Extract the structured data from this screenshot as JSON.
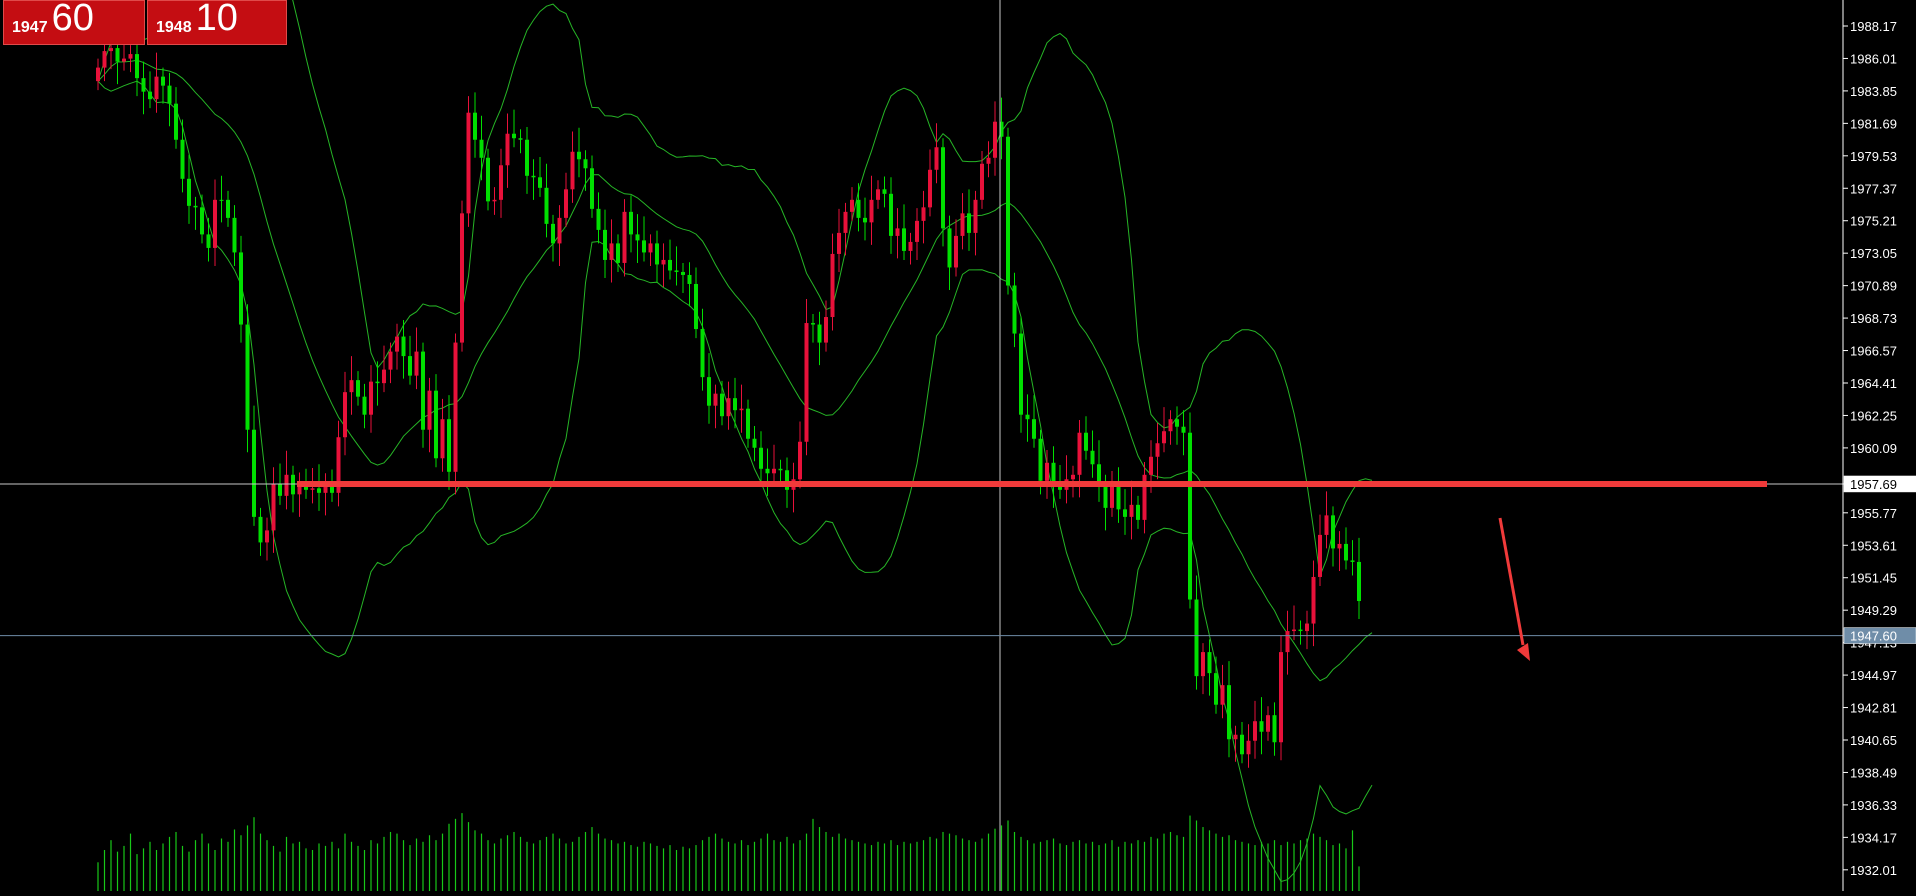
{
  "quotes": {
    "bid": {
      "prefix": "1947",
      "big": "60"
    },
    "ask": {
      "prefix": "1948",
      "big": "10"
    }
  },
  "colors": {
    "background": "#000000",
    "bull": "#00e000",
    "bear": "#e8113a",
    "band": "#26b526",
    "volume": "#18c818",
    "axis_text": "#ffffff",
    "support_line": "#f03a3a",
    "price_line": "#6f8da8",
    "crosshair": "#c8c8c8"
  },
  "chart_data": {
    "type": "candlestick",
    "y_axis": {
      "min": 1930.6,
      "max": 1989.9,
      "tick_labels": [
        "1988.17",
        "1986.01",
        "1983.85",
        "1981.69",
        "1979.53",
        "1977.37",
        "1975.21",
        "1973.05",
        "1970.89",
        "1968.73",
        "1966.57",
        "1964.41",
        "1962.25",
        "1960.09",
        "1957.69",
        "1955.77",
        "1953.61",
        "1951.45",
        "1949.29",
        "1947.13",
        "1944.97",
        "1942.81",
        "1940.65",
        "1938.49",
        "1936.33",
        "1934.17",
        "1932.01"
      ]
    },
    "current_price": {
      "value": 1947.6,
      "label": "1947.60"
    },
    "crosshair_price": {
      "value": 1957.69,
      "label": "1957.69"
    },
    "support_level": 1957.69,
    "trend_arrow": "down",
    "candles_close": [
      1984.5,
      1985.4,
      1986.5,
      1986.7,
      1985.8,
      1986.0,
      1986.3,
      1984.7,
      1983.8,
      1983.3,
      1984.8,
      1984.2,
      1983.0,
      1980.6,
      1978.0,
      1976.2,
      1976.1,
      1974.3,
      1973.4,
      1976.6,
      1976.6,
      1975.4,
      1973.1,
      1968.3,
      1961.3,
      1955.5,
      1953.8,
      1954.6,
      1957.7,
      1956.9,
      1958.3,
      1957.0,
      1957.6,
      1957.3,
      1957.4,
      1957.1,
      1957.8,
      1957.1,
      1960.8,
      1963.8,
      1964.6,
      1963.5,
      1962.3,
      1964.5,
      1964.4,
      1965.3,
      1966.5,
      1967.5,
      1966.2,
      1964.9,
      1966.5,
      1961.3,
      1963.9,
      1959.4,
      1962.0,
      1958.5,
      1967.1,
      1975.7,
      1982.4,
      1980.6,
      1979.4,
      1976.5,
      1976.6,
      1978.9,
      1981.0,
      1980.7,
      1980.6,
      1978.2,
      1978.1,
      1977.4,
      1975.0,
      1973.7,
      1975.4,
      1977.3,
      1979.8,
      1979.3,
      1978.7,
      1976.0,
      1974.6,
      1972.6,
      1973.7,
      1972.4,
      1975.8,
      1974.3,
      1973.9,
      1973.1,
      1973.7,
      1972.3,
      1972.6,
      1971.9,
      1971.8,
      1971.6,
      1971.0,
      1968.0,
      1964.8,
      1962.9,
      1963.7,
      1962.2,
      1963.4,
      1962.6,
      1962.7,
      1960.7,
      1960.1,
      1958.7,
      1958.4,
      1958.7,
      1958.6,
      1957.3,
      1958.0,
      1960.5,
      1968.4,
      1968.3,
      1967.1,
      1968.8,
      1973.0,
      1974.4,
      1975.8,
      1976.6,
      1975.4,
      1975.1,
      1976.6,
      1977.3,
      1977.0,
      1974.2,
      1974.7,
      1973.2,
      1973.8,
      1975.2,
      1976.1,
      1978.6,
      1980.1,
      1974.7,
      1972.1,
      1974.2,
      1975.7,
      1974.4,
      1976.6,
      1979.0,
      1979.4,
      1981.8,
      1980.8,
      1970.9,
      1967.7,
      1962.3,
      1962.0,
      1960.7,
      1957.9,
      1959.1,
      1957.6,
      1957.3,
      1958.0,
      1958.3,
      1961.1,
      1959.9,
      1959.0,
      1957.7,
      1956.1,
      1957.7,
      1956.0,
      1955.5,
      1956.3,
      1955.3,
      1958.3,
      1959.5,
      1960.4,
      1961.2,
      1962.0,
      1961.5,
      1961.1,
      1950.0,
      1944.9,
      1946.5,
      1945.1,
      1943.0,
      1944.3,
      1940.7,
      1941.0,
      1939.7,
      1940.6,
      1941.9,
      1941.2,
      1942.3,
      1940.5,
      1946.5,
      1947.9,
      1948.0,
      1947.9,
      1948.4,
      1951.5,
      1954.3,
      1955.6,
      1953.4,
      1953.7,
      1952.6,
      1952.5,
      1949.9,
      1947.4
    ],
    "candles_open": [
      1985.4,
      1986.5,
      1986.7,
      1985.8,
      1986.0,
      1986.3,
      1984.7,
      1983.8,
      1983.3,
      1984.8,
      1984.2,
      1983.0,
      1980.6,
      1978.0,
      1976.2,
      1976.1,
      1974.3,
      1973.4,
      1976.6,
      1976.6,
      1975.4,
      1973.1,
      1968.3,
      1961.3,
      1955.5,
      1953.8,
      1954.6,
      1957.7,
      1956.9,
      1958.3,
      1957.0,
      1957.6,
      1957.3,
      1957.4,
      1957.1,
      1957.8,
      1957.1,
      1960.8,
      1963.8,
      1964.6,
      1963.5,
      1962.3,
      1964.5,
      1964.4,
      1965.3,
      1966.5,
      1967.5,
      1966.2,
      1964.9,
      1966.5,
      1961.3,
      1963.9,
      1959.4,
      1962.0,
      1958.5,
      1967.1,
      1975.7,
      1982.4,
      1980.6,
      1979.4,
      1976.5,
      1976.6,
      1978.9,
      1981.0,
      1980.7,
      1980.6,
      1978.2,
      1978.1,
      1977.4,
      1975.0,
      1973.7,
      1975.4,
      1977.3,
      1979.8,
      1979.3,
      1978.7,
      1976.0,
      1974.6,
      1972.6,
      1973.7,
      1972.4,
      1975.8,
      1974.3,
      1973.9,
      1973.1,
      1973.7,
      1972.3,
      1972.6,
      1971.9,
      1971.8,
      1971.6,
      1971.0,
      1968.0,
      1964.8,
      1962.9,
      1963.7,
      1962.2,
      1963.4,
      1962.6,
      1962.7,
      1960.7,
      1960.1,
      1958.7,
      1958.4,
      1958.7,
      1958.6,
      1957.3,
      1958.0,
      1960.5,
      1968.4,
      1968.3,
      1967.1,
      1968.8,
      1973.0,
      1974.4,
      1975.8,
      1976.6,
      1975.4,
      1975.1,
      1976.6,
      1977.3,
      1977.0,
      1974.2,
      1974.7,
      1973.2,
      1973.8,
      1975.2,
      1976.1,
      1978.6,
      1980.1,
      1974.7,
      1972.1,
      1974.2,
      1975.7,
      1974.4,
      1976.6,
      1979.0,
      1979.4,
      1981.8,
      1980.8,
      1970.9,
      1967.7,
      1962.3,
      1962.0,
      1960.7,
      1957.9,
      1959.1,
      1957.6,
      1957.3,
      1958.0,
      1958.3,
      1961.1,
      1959.9,
      1959.0,
      1957.7,
      1956.1,
      1957.7,
      1956.0,
      1955.5,
      1956.3,
      1955.3,
      1958.3,
      1959.5,
      1960.4,
      1961.2,
      1962.0,
      1961.5,
      1961.1,
      1950.0,
      1944.9,
      1946.5,
      1945.1,
      1943.0,
      1944.3,
      1940.7,
      1941.0,
      1939.7,
      1940.6,
      1941.9,
      1941.2,
      1942.3,
      1940.5,
      1946.5,
      1947.9,
      1948.0,
      1947.9,
      1948.4,
      1951.5,
      1954.3,
      1955.6,
      1953.4,
      1953.7,
      1952.6,
      1952.5,
      1949.9
    ],
    "volume_relative": [
      0.35,
      0.5,
      0.62,
      0.48,
      0.55,
      0.7,
      0.45,
      0.52,
      0.6,
      0.5,
      0.58,
      0.66,
      0.72,
      0.55,
      0.48,
      0.62,
      0.7,
      0.58,
      0.5,
      0.64,
      0.6,
      0.75,
      0.68,
      0.8,
      0.9,
      0.7,
      0.62,
      0.55,
      0.48,
      0.66,
      0.58,
      0.6,
      0.52,
      0.5,
      0.58,
      0.55,
      0.6,
      0.52,
      0.7,
      0.6,
      0.55,
      0.5,
      0.62,
      0.58,
      0.66,
      0.72,
      0.7,
      0.62,
      0.56,
      0.64,
      0.6,
      0.68,
      0.62,
      0.7,
      0.82,
      0.88,
      0.95,
      0.84,
      0.74,
      0.7,
      0.62,
      0.58,
      0.64,
      0.68,
      0.72,
      0.66,
      0.6,
      0.58,
      0.62,
      0.66,
      0.7,
      0.64,
      0.58,
      0.6,
      0.66,
      0.72,
      0.78,
      0.7,
      0.64,
      0.62,
      0.58,
      0.6,
      0.56,
      0.54,
      0.6,
      0.58,
      0.55,
      0.52,
      0.56,
      0.5,
      0.54,
      0.52,
      0.56,
      0.62,
      0.66,
      0.7,
      0.64,
      0.6,
      0.58,
      0.62,
      0.56,
      0.6,
      0.64,
      0.7,
      0.62,
      0.6,
      0.66,
      0.58,
      0.62,
      0.7,
      0.88,
      0.78,
      0.72,
      0.66,
      0.7,
      0.64,
      0.62,
      0.6,
      0.58,
      0.56,
      0.6,
      0.58,
      0.62,
      0.56,
      0.6,
      0.58,
      0.6,
      0.62,
      0.66,
      0.64,
      0.72,
      0.7,
      0.68,
      0.64,
      0.62,
      0.6,
      0.64,
      0.7,
      0.76,
      0.8,
      0.86,
      0.72,
      0.66,
      0.62,
      0.58,
      0.6,
      0.62,
      0.64,
      0.58,
      0.56,
      0.6,
      0.62,
      0.58,
      0.6,
      0.56,
      0.58,
      0.62,
      0.54,
      0.6,
      0.58,
      0.62,
      0.6,
      0.66,
      0.64,
      0.7,
      0.72,
      0.68,
      0.66,
      0.92,
      0.86,
      0.78,
      0.74,
      0.7,
      0.66,
      0.68,
      0.62,
      0.6,
      0.58,
      0.56,
      0.6,
      0.58,
      0.62,
      0.56,
      0.6,
      0.58,
      0.62,
      0.64,
      0.7,
      0.66,
      0.62,
      0.56,
      0.58,
      0.52,
      0.74,
      0.3
    ]
  }
}
